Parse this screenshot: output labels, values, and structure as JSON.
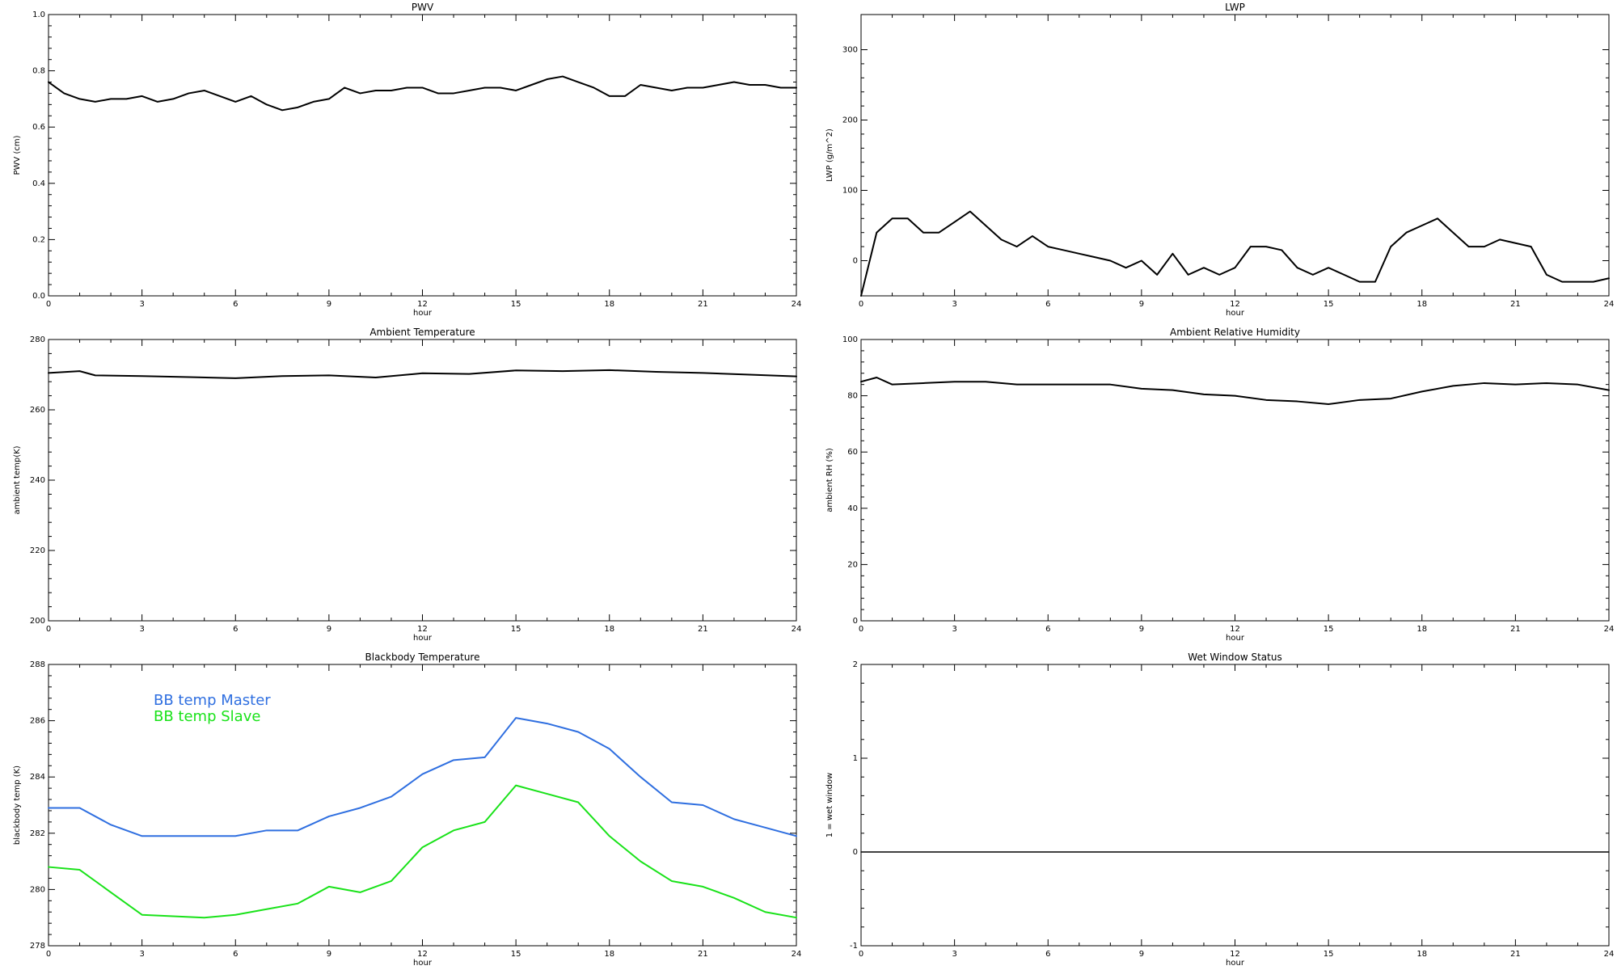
{
  "charts": [
    {
      "id": "pwv",
      "title": "PWV",
      "xlabel": "hour",
      "ylabel": "PWV (cm)",
      "xlim": [
        0,
        24
      ],
      "ylim": [
        0.0,
        1.0
      ],
      "xticks": [
        0,
        3,
        6,
        9,
        12,
        15,
        18,
        21,
        24
      ],
      "xtick_labels": [
        "0",
        "3",
        "6",
        "9",
        "12",
        "15",
        "18",
        "21",
        "24"
      ],
      "yticks": [
        0.0,
        0.2,
        0.4,
        0.6,
        0.8,
        1.0
      ],
      "ytick_labels": [
        "0.0",
        "0.2",
        "0.4",
        "0.6",
        "0.8",
        "1.0"
      ],
      "series": [
        {
          "color": "#000000",
          "data": [
            [
              0.0,
              0.76
            ],
            [
              0.5,
              0.72
            ],
            [
              1.0,
              0.7
            ],
            [
              1.5,
              0.69
            ],
            [
              2.0,
              0.7
            ],
            [
              2.5,
              0.7
            ],
            [
              3.0,
              0.71
            ],
            [
              3.5,
              0.69
            ],
            [
              4.0,
              0.7
            ],
            [
              4.5,
              0.72
            ],
            [
              5.0,
              0.73
            ],
            [
              5.5,
              0.71
            ],
            [
              6.0,
              0.69
            ],
            [
              6.5,
              0.71
            ],
            [
              7.0,
              0.68
            ],
            [
              7.5,
              0.66
            ],
            [
              8.0,
              0.67
            ],
            [
              8.5,
              0.69
            ],
            [
              9.0,
              0.7
            ],
            [
              9.5,
              0.74
            ],
            [
              10.0,
              0.72
            ],
            [
              10.5,
              0.73
            ],
            [
              11.0,
              0.73
            ],
            [
              11.5,
              0.74
            ],
            [
              12.0,
              0.74
            ],
            [
              12.5,
              0.72
            ],
            [
              13.0,
              0.72
            ],
            [
              13.5,
              0.73
            ],
            [
              14.0,
              0.74
            ],
            [
              14.5,
              0.74
            ],
            [
              15.0,
              0.73
            ],
            [
              15.5,
              0.75
            ],
            [
              16.0,
              0.77
            ],
            [
              16.5,
              0.78
            ],
            [
              17.0,
              0.76
            ],
            [
              17.5,
              0.74
            ],
            [
              18.0,
              0.71
            ],
            [
              18.5,
              0.71
            ],
            [
              19.0,
              0.75
            ],
            [
              19.5,
              0.74
            ],
            [
              20.0,
              0.73
            ],
            [
              20.5,
              0.74
            ],
            [
              21.0,
              0.74
            ],
            [
              21.5,
              0.75
            ],
            [
              22.0,
              0.76
            ],
            [
              22.5,
              0.75
            ],
            [
              23.0,
              0.75
            ],
            [
              23.5,
              0.74
            ],
            [
              24.0,
              0.74
            ]
          ]
        }
      ]
    },
    {
      "id": "lwp",
      "title": "LWP",
      "xlabel": "hour",
      "ylabel": "LWP (g/m^2)",
      "xlim": [
        0,
        24
      ],
      "ylim": [
        -50,
        350
      ],
      "xticks": [
        0,
        3,
        6,
        9,
        12,
        15,
        18,
        21,
        24
      ],
      "xtick_labels": [
        "0",
        "3",
        "6",
        "9",
        "12",
        "15",
        "18",
        "21",
        "24"
      ],
      "yticks": [
        0,
        100,
        200,
        300
      ],
      "ytick_labels": [
        "0",
        "100",
        "200",
        "300"
      ],
      "series": [
        {
          "color": "#000000",
          "data": [
            [
              0.0,
              -50
            ],
            [
              0.5,
              40
            ],
            [
              1.0,
              60
            ],
            [
              1.5,
              60
            ],
            [
              2.0,
              40
            ],
            [
              2.5,
              40
            ],
            [
              3.0,
              55
            ],
            [
              3.5,
              70
            ],
            [
              4.0,
              50
            ],
            [
              4.5,
              30
            ],
            [
              5.0,
              20
            ],
            [
              5.5,
              35
            ],
            [
              6.0,
              20
            ],
            [
              6.5,
              15
            ],
            [
              7.0,
              10
            ],
            [
              7.5,
              5
            ],
            [
              8.0,
              0
            ],
            [
              8.5,
              -10
            ],
            [
              9.0,
              0
            ],
            [
              9.5,
              -20
            ],
            [
              10.0,
              10
            ],
            [
              10.5,
              -20
            ],
            [
              11.0,
              -10
            ],
            [
              11.5,
              -20
            ],
            [
              12.0,
              -10
            ],
            [
              12.5,
              20
            ],
            [
              13.0,
              20
            ],
            [
              13.5,
              15
            ],
            [
              14.0,
              -10
            ],
            [
              14.5,
              -20
            ],
            [
              15.0,
              -10
            ],
            [
              15.5,
              -20
            ],
            [
              16.0,
              -30
            ],
            [
              16.5,
              -30
            ],
            [
              17.0,
              20
            ],
            [
              17.5,
              40
            ],
            [
              18.0,
              50
            ],
            [
              18.5,
              60
            ],
            [
              19.0,
              40
            ],
            [
              19.5,
              20
            ],
            [
              20.0,
              20
            ],
            [
              20.5,
              30
            ],
            [
              21.0,
              25
            ],
            [
              21.5,
              20
            ],
            [
              22.0,
              -20
            ],
            [
              22.5,
              -30
            ],
            [
              23.0,
              -30
            ],
            [
              23.5,
              -30
            ],
            [
              24.0,
              -25
            ]
          ]
        }
      ]
    },
    {
      "id": "ambient-temp",
      "title": "Ambient Temperature",
      "xlabel": "hour",
      "ylabel": "ambient temp(K)",
      "xlim": [
        0,
        24
      ],
      "ylim": [
        200,
        280
      ],
      "xticks": [
        0,
        3,
        6,
        9,
        12,
        15,
        18,
        21,
        24
      ],
      "xtick_labels": [
        "0",
        "3",
        "6",
        "9",
        "12",
        "15",
        "18",
        "21",
        "24"
      ],
      "yticks": [
        200,
        220,
        240,
        260,
        280
      ],
      "ytick_labels": [
        "200",
        "220",
        "240",
        "260",
        "280"
      ],
      "series": [
        {
          "color": "#000000",
          "data": [
            [
              0.0,
              270.5
            ],
            [
              1.0,
              271.0
            ],
            [
              1.5,
              269.8
            ],
            [
              3.0,
              269.6
            ],
            [
              4.5,
              269.3
            ],
            [
              6.0,
              269.0
            ],
            [
              7.5,
              269.6
            ],
            [
              9.0,
              269.8
            ],
            [
              10.5,
              269.2
            ],
            [
              12.0,
              270.4
            ],
            [
              13.5,
              270.2
            ],
            [
              15.0,
              271.2
            ],
            [
              16.5,
              271.0
            ],
            [
              18.0,
              271.3
            ],
            [
              19.5,
              270.8
            ],
            [
              21.0,
              270.5
            ],
            [
              22.5,
              270.0
            ],
            [
              24.0,
              269.5
            ]
          ]
        }
      ]
    },
    {
      "id": "ambient-rh",
      "title": "Ambient Relative Humidity",
      "xlabel": "hour",
      "ylabel": "ambient RH (%)",
      "xlim": [
        0,
        24
      ],
      "ylim": [
        0,
        100
      ],
      "xticks": [
        0,
        3,
        6,
        9,
        12,
        15,
        18,
        21,
        24
      ],
      "xtick_labels": [
        "0",
        "3",
        "6",
        "9",
        "12",
        "15",
        "18",
        "21",
        "24"
      ],
      "yticks": [
        0,
        20,
        40,
        60,
        80,
        100
      ],
      "ytick_labels": [
        "0",
        "20",
        "40",
        "60",
        "80",
        "100"
      ],
      "series": [
        {
          "color": "#000000",
          "data": [
            [
              0.0,
              85.0
            ],
            [
              0.5,
              86.5
            ],
            [
              1.0,
              84.0
            ],
            [
              2.0,
              84.5
            ],
            [
              3.0,
              85.0
            ],
            [
              4.0,
              85.0
            ],
            [
              5.0,
              84.0
            ],
            [
              6.0,
              84.0
            ],
            [
              7.0,
              84.0
            ],
            [
              8.0,
              84.0
            ],
            [
              9.0,
              82.5
            ],
            [
              10.0,
              82.0
            ],
            [
              11.0,
              80.5
            ],
            [
              12.0,
              80.0
            ],
            [
              13.0,
              78.5
            ],
            [
              14.0,
              78.0
            ],
            [
              15.0,
              77.0
            ],
            [
              16.0,
              78.5
            ],
            [
              17.0,
              79.0
            ],
            [
              18.0,
              81.5
            ],
            [
              19.0,
              83.5
            ],
            [
              20.0,
              84.5
            ],
            [
              21.0,
              84.0
            ],
            [
              22.0,
              84.5
            ],
            [
              23.0,
              84.0
            ],
            [
              24.0,
              82.0
            ]
          ]
        }
      ]
    },
    {
      "id": "blackbody-temp",
      "title": "Blackbody Temperature",
      "xlabel": "hour",
      "ylabel": "blackbody temp (K)",
      "xlim": [
        0,
        24
      ],
      "ylim": [
        278,
        288
      ],
      "xticks": [
        0,
        3,
        6,
        9,
        12,
        15,
        18,
        21,
        24
      ],
      "xtick_labels": [
        "0",
        "3",
        "6",
        "9",
        "12",
        "15",
        "18",
        "21",
        "24"
      ],
      "yticks": [
        278,
        280,
        282,
        284,
        286,
        288
      ],
      "ytick_labels": [
        "278",
        "280",
        "282",
        "284",
        "286",
        "288"
      ],
      "legend": {
        "entries": [
          "BB temp Master",
          "BB temp Slave"
        ]
      },
      "series": [
        {
          "name": "BB temp Master",
          "color": "#2f6fe0",
          "data": [
            [
              0.0,
              282.9
            ],
            [
              1.0,
              282.9
            ],
            [
              2.0,
              282.3
            ],
            [
              3.0,
              281.9
            ],
            [
              4.0,
              281.9
            ],
            [
              5.0,
              281.9
            ],
            [
              6.0,
              281.9
            ],
            [
              7.0,
              282.1
            ],
            [
              8.0,
              282.1
            ],
            [
              9.0,
              282.6
            ],
            [
              10.0,
              282.9
            ],
            [
              11.0,
              283.3
            ],
            [
              12.0,
              284.1
            ],
            [
              13.0,
              284.6
            ],
            [
              14.0,
              284.7
            ],
            [
              15.0,
              286.1
            ],
            [
              16.0,
              285.9
            ],
            [
              17.0,
              285.6
            ],
            [
              18.0,
              285.0
            ],
            [
              19.0,
              284.0
            ],
            [
              20.0,
              283.1
            ],
            [
              21.0,
              283.0
            ],
            [
              22.0,
              282.5
            ],
            [
              23.0,
              282.2
            ],
            [
              24.0,
              281.9
            ]
          ]
        },
        {
          "name": "BB temp Slave",
          "color": "#19e219",
          "data": [
            [
              0.0,
              280.8
            ],
            [
              1.0,
              280.7
            ],
            [
              2.0,
              279.9
            ],
            [
              3.0,
              279.1
            ],
            [
              4.0,
              279.05
            ],
            [
              5.0,
              279.0
            ],
            [
              6.0,
              279.1
            ],
            [
              7.0,
              279.3
            ],
            [
              8.0,
              279.5
            ],
            [
              9.0,
              280.1
            ],
            [
              10.0,
              279.9
            ],
            [
              11.0,
              280.3
            ],
            [
              12.0,
              281.5
            ],
            [
              13.0,
              282.1
            ],
            [
              14.0,
              282.4
            ],
            [
              15.0,
              283.7
            ],
            [
              16.0,
              283.4
            ],
            [
              17.0,
              283.1
            ],
            [
              18.0,
              281.9
            ],
            [
              19.0,
              281.0
            ],
            [
              20.0,
              280.3
            ],
            [
              21.0,
              280.1
            ],
            [
              22.0,
              279.7
            ],
            [
              23.0,
              279.2
            ],
            [
              24.0,
              279.0
            ]
          ]
        }
      ]
    },
    {
      "id": "wet-window",
      "title": "Wet Window Status",
      "xlabel": "hour",
      "ylabel": "1 = wet window",
      "xlim": [
        0,
        24
      ],
      "ylim": [
        -1,
        2
      ],
      "xticks": [
        0,
        3,
        6,
        9,
        12,
        15,
        18,
        21,
        24
      ],
      "xtick_labels": [
        "0",
        "3",
        "6",
        "9",
        "12",
        "15",
        "18",
        "21",
        "24"
      ],
      "yticks": [
        -1,
        0,
        1,
        2
      ],
      "ytick_labels": [
        "-1",
        "0",
        "1",
        "2"
      ],
      "series": [
        {
          "color": "#000000",
          "data": [
            [
              0,
              0
            ],
            [
              24,
              0
            ]
          ]
        }
      ]
    }
  ]
}
